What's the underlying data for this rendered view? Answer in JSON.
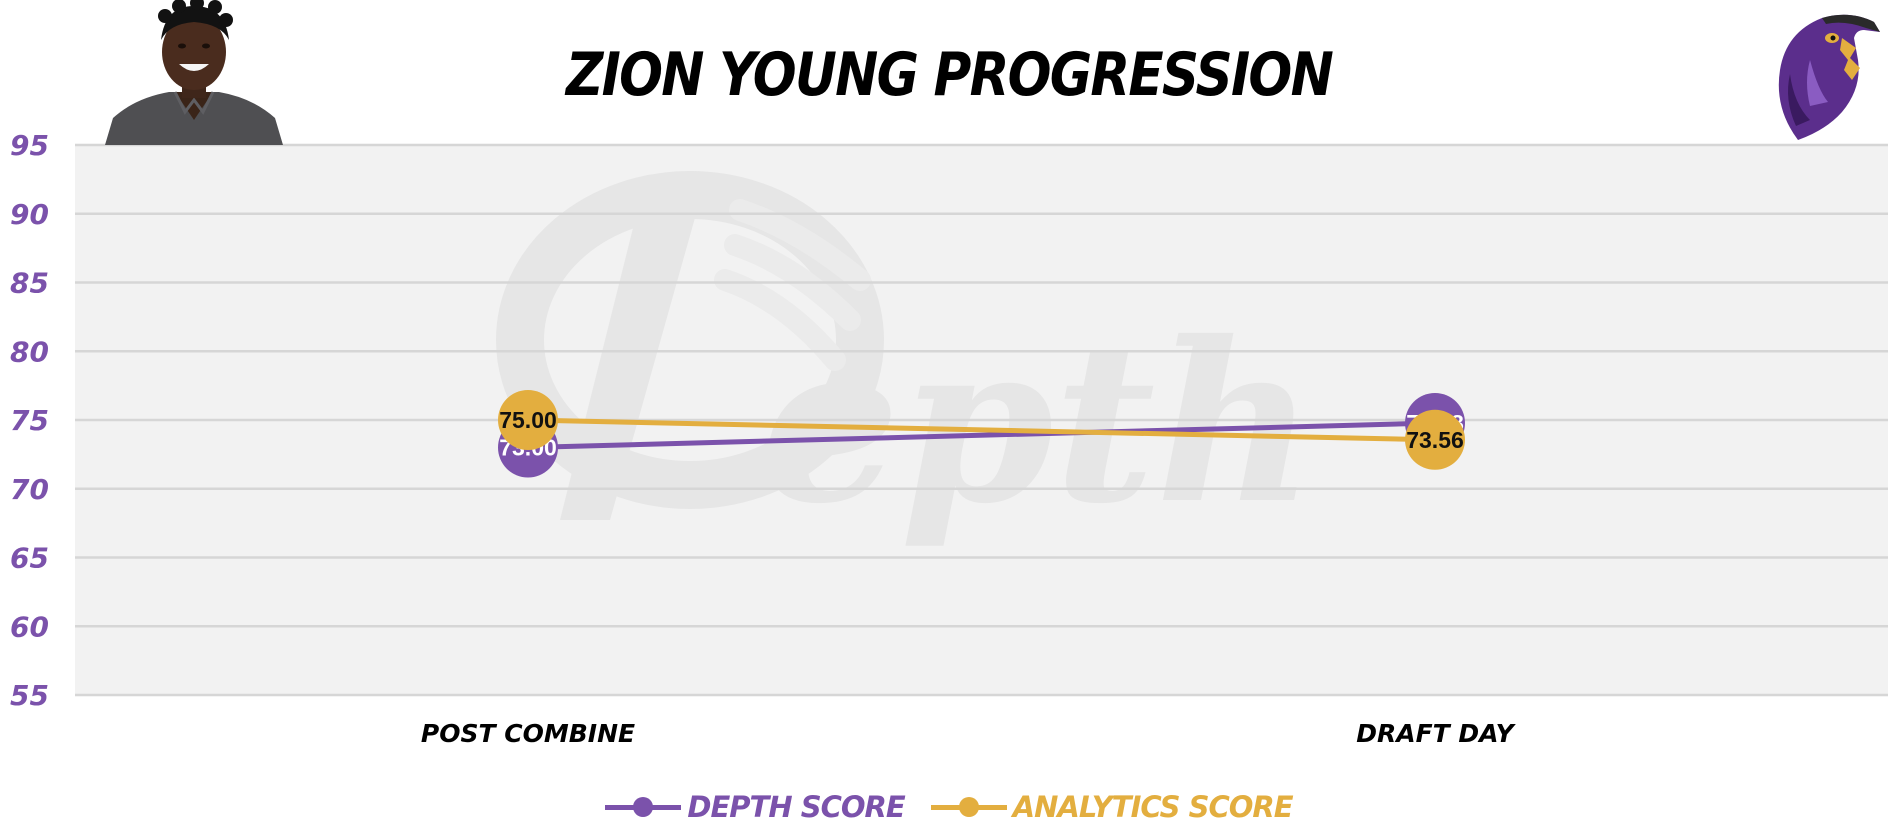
{
  "chart_data": {
    "type": "line",
    "title": "ZION YOUNG PROGRESSION",
    "categories": [
      "POST COMBINE",
      "DRAFT DAY"
    ],
    "series": [
      {
        "name": "DEPTH SCORE",
        "values": [
          73.0,
          74.78
        ],
        "labels": [
          "73.00",
          "74.78"
        ],
        "color": "#7B52AB",
        "label_color": "#ffffff"
      },
      {
        "name": "ANALYTICS SCORE",
        "values": [
          75.0,
          73.56
        ],
        "labels": [
          "75.00",
          "73.56"
        ],
        "color": "#E3AE3F",
        "label_color": "#111111"
      }
    ],
    "y_ticks": [
      "95",
      "90",
      "85",
      "80",
      "75",
      "70",
      "65",
      "60",
      "55"
    ],
    "ylim": [
      55,
      95
    ],
    "grid": true,
    "legend": "bottom-center",
    "colors": {
      "tick_text": "#7B52AB",
      "plot_background": "#F2F2F2",
      "gridline": "#D6D6D6",
      "watermark": "#E4E4E4"
    }
  },
  "images": {
    "player_photo": "player-headshot",
    "team_logo": "raven-logo",
    "watermark": "depth-logo-watermark"
  }
}
